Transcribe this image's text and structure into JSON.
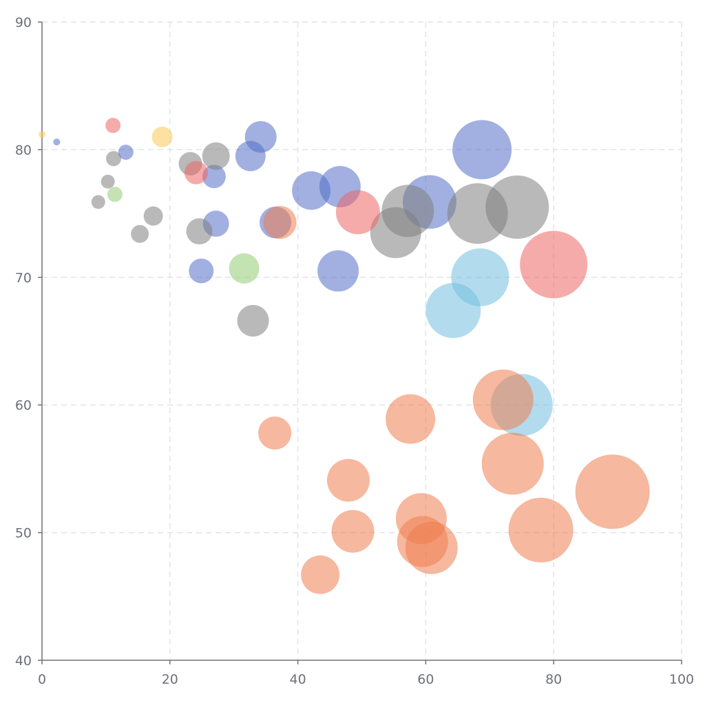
{
  "chart_data": {
    "type": "scatter",
    "encoding": "bubble",
    "title": "",
    "xlabel": "",
    "ylabel": "",
    "xlim": [
      0,
      100
    ],
    "ylim": [
      40,
      90
    ],
    "x_ticks": [
      "0",
      "20",
      "40",
      "60",
      "80",
      "100"
    ],
    "y_ticks": [
      "40",
      "50",
      "60",
      "70",
      "80",
      "90"
    ],
    "grid": true,
    "legend": "none",
    "series": [
      {
        "color": "#5470c6",
        "points": [
          {
            "x": 2.3,
            "y": 80.6,
            "r": 5
          },
          {
            "x": 13.1,
            "y": 79.8,
            "r": 11
          },
          {
            "x": 26.9,
            "y": 77.9,
            "r": 17
          },
          {
            "x": 27.2,
            "y": 74.2,
            "r": 19
          },
          {
            "x": 24.9,
            "y": 70.5,
            "r": 18
          },
          {
            "x": 32.6,
            "y": 79.5,
            "r": 22
          },
          {
            "x": 34.2,
            "y": 81.0,
            "r": 23
          },
          {
            "x": 36.5,
            "y": 74.3,
            "r": 23
          },
          {
            "x": 42.1,
            "y": 76.8,
            "r": 28
          },
          {
            "x": 46.6,
            "y": 77.1,
            "r": 30
          },
          {
            "x": 46.3,
            "y": 70.5,
            "r": 30
          },
          {
            "x": 60.6,
            "y": 75.9,
            "r": 39
          },
          {
            "x": 68.8,
            "y": 80.0,
            "r": 43
          }
        ]
      },
      {
        "color": "#808080",
        "points": [
          {
            "x": 8.8,
            "y": 75.9,
            "r": 10
          },
          {
            "x": 10.3,
            "y": 77.5,
            "r": 10
          },
          {
            "x": 11.2,
            "y": 79.3,
            "r": 11
          },
          {
            "x": 15.3,
            "y": 73.4,
            "r": 13
          },
          {
            "x": 17.4,
            "y": 74.8,
            "r": 14
          },
          {
            "x": 23.2,
            "y": 78.9,
            "r": 17
          },
          {
            "x": 24.6,
            "y": 73.6,
            "r": 19
          },
          {
            "x": 27.2,
            "y": 79.5,
            "r": 20
          },
          {
            "x": 33.0,
            "y": 66.6,
            "r": 23
          },
          {
            "x": 55.3,
            "y": 73.5,
            "r": 37
          },
          {
            "x": 57.2,
            "y": 75.2,
            "r": 38
          },
          {
            "x": 68.1,
            "y": 75.0,
            "r": 44
          },
          {
            "x": 74.3,
            "y": 75.5,
            "r": 46
          }
        ]
      },
      {
        "color": "#ee6666",
        "points": [
          {
            "x": 11.1,
            "y": 81.9,
            "r": 11
          },
          {
            "x": 24.1,
            "y": 78.2,
            "r": 17
          },
          {
            "x": 49.4,
            "y": 75.1,
            "r": 32
          },
          {
            "x": 80.0,
            "y": 71.0,
            "r": 49
          }
        ]
      },
      {
        "color": "#fac858",
        "points": [
          {
            "x": 0.0,
            "y": 81.2,
            "r": 5
          },
          {
            "x": 18.8,
            "y": 81.0,
            "r": 15
          }
        ]
      },
      {
        "color": "#91cc75",
        "points": [
          {
            "x": 11.4,
            "y": 76.5,
            "r": 11
          },
          {
            "x": 31.6,
            "y": 70.7,
            "r": 22
          }
        ]
      },
      {
        "color": "#73c0de",
        "points": [
          {
            "x": 64.3,
            "y": 67.4,
            "r": 40
          },
          {
            "x": 68.5,
            "y": 70.0,
            "r": 42
          },
          {
            "x": 75.0,
            "y": 60.0,
            "r": 45
          }
        ]
      },
      {
        "color": "#ee7e4f",
        "points": [
          {
            "x": 37.2,
            "y": 74.3,
            "r": 24
          },
          {
            "x": 36.4,
            "y": 57.8,
            "r": 24
          },
          {
            "x": 43.5,
            "y": 46.7,
            "r": 28
          },
          {
            "x": 47.9,
            "y": 54.1,
            "r": 31
          },
          {
            "x": 48.6,
            "y": 50.1,
            "r": 31
          },
          {
            "x": 57.6,
            "y": 58.9,
            "r": 36
          },
          {
            "x": 59.3,
            "y": 51.1,
            "r": 37
          },
          {
            "x": 59.5,
            "y": 49.3,
            "r": 37
          },
          {
            "x": 60.9,
            "y": 48.8,
            "r": 38
          },
          {
            "x": 72.1,
            "y": 60.4,
            "r": 44
          },
          {
            "x": 73.6,
            "y": 55.4,
            "r": 45
          },
          {
            "x": 78.0,
            "y": 50.2,
            "r": 47
          },
          {
            "x": 89.2,
            "y": 53.2,
            "r": 54
          }
        ]
      }
    ]
  }
}
